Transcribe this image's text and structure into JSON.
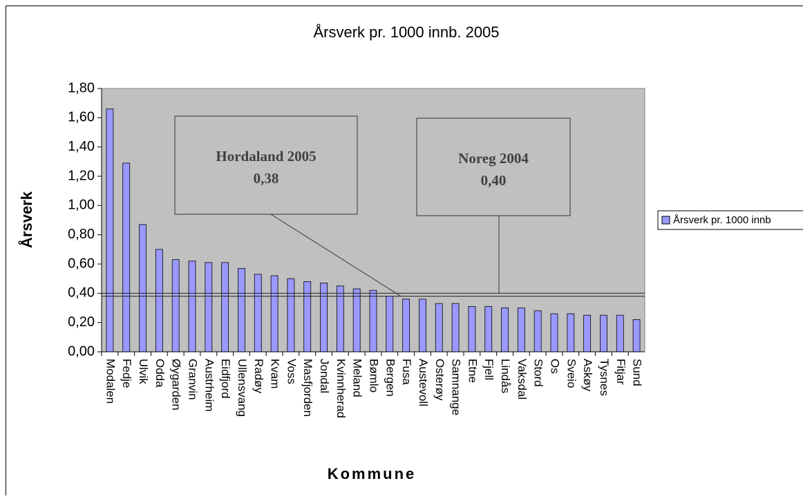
{
  "chart_data": {
    "type": "bar",
    "title": "Årsverk pr. 1000 innb. 2005",
    "x_label": "Kommune",
    "y_label": "Årsverk",
    "categories": [
      "Modalen",
      "Fedje",
      "Ulvik",
      "Odda",
      "Øygarden",
      "Granvin",
      "Austrheim",
      "Eidfjord",
      "Ullensvang",
      "Radøy",
      "Kvam",
      "Voss",
      "Masfjorden",
      "Jondal",
      "Kvinnherad",
      "Meland",
      "Bømlo",
      "Bergen",
      "Fusa",
      "Austevoll",
      "Osterøy",
      "Samnange",
      "Etne",
      "Fjell",
      "Lindås",
      "Vaksdal",
      "Stord",
      "Os",
      "Sveio",
      "Askøy",
      "Tysnes",
      "Fitjar",
      "Sund"
    ],
    "series": [
      {
        "name": "Årsverk pr. 1000 innb",
        "color": "#9999ff",
        "values": [
          1.66,
          1.29,
          0.87,
          0.7,
          0.63,
          0.62,
          0.61,
          0.61,
          0.57,
          0.53,
          0.52,
          0.5,
          0.48,
          0.47,
          0.45,
          0.43,
          0.42,
          0.38,
          0.36,
          0.36,
          0.33,
          0.33,
          0.31,
          0.31,
          0.3,
          0.3,
          0.28,
          0.26,
          0.26,
          0.25,
          0.25,
          0.25,
          0.22
        ]
      }
    ],
    "ylim": [
      0,
      1.8
    ],
    "yticks": [
      {
        "value": 0,
        "label": "0,00"
      },
      {
        "value": 0.2,
        "label": "0,20"
      },
      {
        "value": 0.4,
        "label": "0,40"
      },
      {
        "value": 0.6,
        "label": "0,60"
      },
      {
        "value": 0.8,
        "label": "0,80"
      },
      {
        "value": 1.0,
        "label": "1,00"
      },
      {
        "value": 1.2,
        "label": "1,20"
      },
      {
        "value": 1.4,
        "label": "1,40"
      },
      {
        "value": 1.6,
        "label": "1,60"
      },
      {
        "value": 1.8,
        "label": "1,80"
      }
    ],
    "reference_lines": [
      {
        "label": "Hordaland 2005",
        "value": 0.38,
        "value_label": "0,38"
      },
      {
        "label": "Noreg 2004",
        "value": 0.4,
        "value_label": "0,40"
      }
    ],
    "legend": "right",
    "plot_background": "#c0c0c0"
  }
}
